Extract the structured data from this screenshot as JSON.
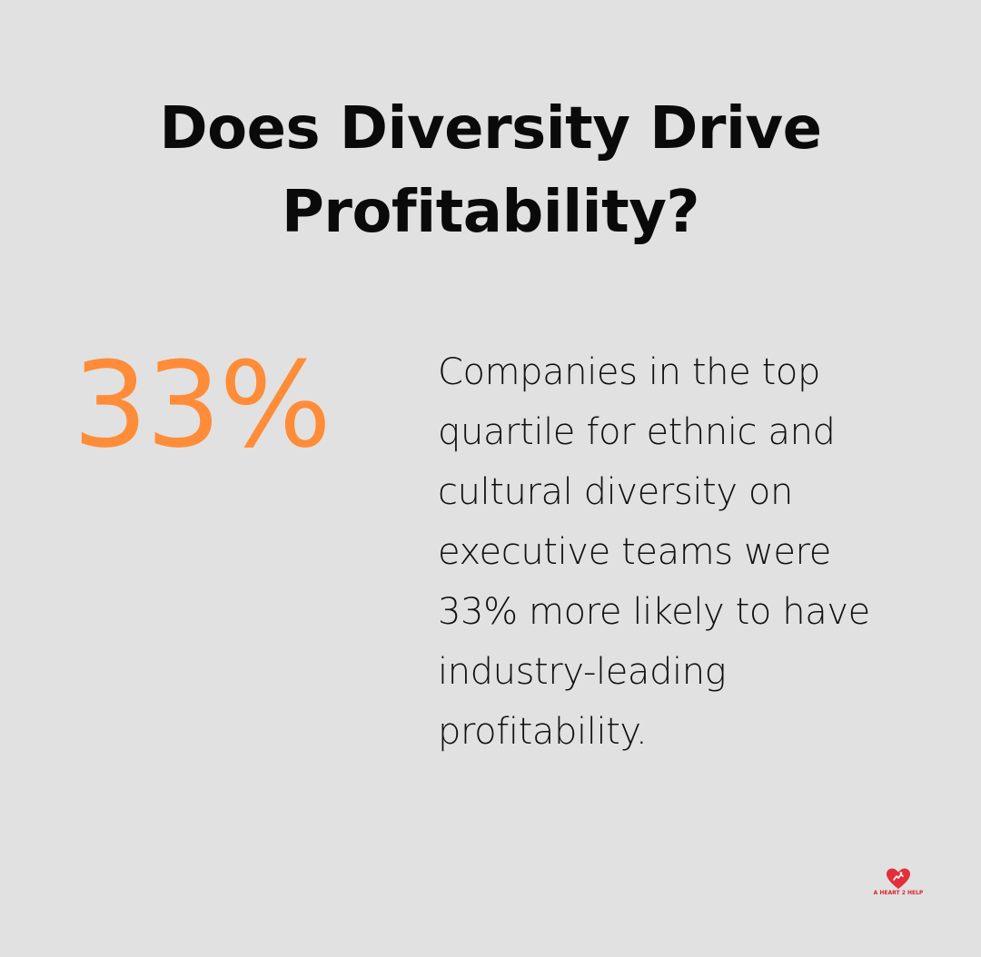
{
  "title_lines": [
    "Does Diversity Drive",
    "Profitability?"
  ],
  "stat": {
    "value": "33%",
    "color": "#ff8c38"
  },
  "description_lines": [
    "Companies in the top",
    "quartile for ethnic and",
    "cultural diversity on",
    "executive teams were",
    "33% more likely to have",
    "industry-leading",
    "profitability."
  ],
  "logo": {
    "icon": "heart-hands-icon",
    "text": "A HEART 2 HELP",
    "color": "#d8262f"
  },
  "background_color": "#e0e1e0"
}
